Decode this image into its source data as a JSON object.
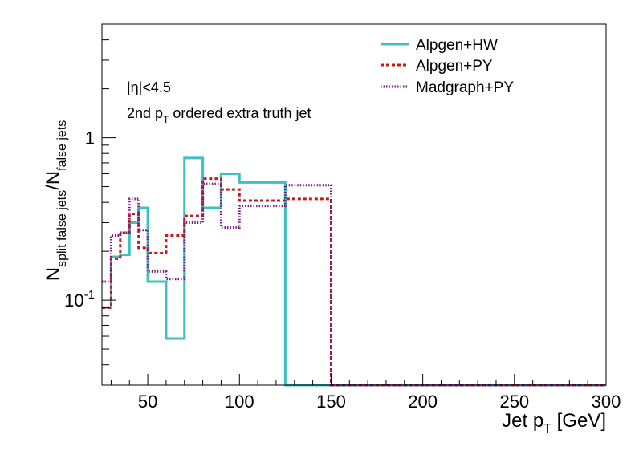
{
  "chart_data": {
    "type": "line",
    "title": "",
    "xlabel": "Jet p",
    "xlabel_sub": "T",
    "xlabel_unit": " [GeV]",
    "ylabel_parts": {
      "n1": "N",
      "sub1": "split false jets",
      "slash": "/N",
      "sub2": "false jets"
    },
    "xlim": [
      25,
      300
    ],
    "ylim": [
      0.03,
      5.0
    ],
    "yscale": "log",
    "grid": false,
    "legend_position": "top-right",
    "x_ticks": [
      {
        "value": 50,
        "label": "50"
      },
      {
        "value": 100,
        "label": "100"
      },
      {
        "value": 150,
        "label": "150"
      },
      {
        "value": 200,
        "label": "200"
      },
      {
        "value": 250,
        "label": "250"
      },
      {
        "value": 300,
        "label": "300"
      }
    ],
    "y_ticks": [
      {
        "value": 0.1,
        "base": "10",
        "exp": "-1"
      },
      {
        "value": 1,
        "base": "1",
        "exp": ""
      }
    ],
    "annotations": {
      "eta_text": "|η|<4.5",
      "line2_a": "2nd p",
      "line2_sub": "T",
      "line2_b": " ordered extra truth jet"
    },
    "bin_edges": [
      25,
      30,
      35,
      40,
      45,
      50,
      60,
      70,
      80,
      90,
      100,
      125,
      150,
      300
    ],
    "series": [
      {
        "name": "Alpgen+HW",
        "color": "#3cc0c0",
        "style": "solid",
        "values": [
          0.09,
          0.185,
          0.19,
          0.3,
          0.37,
          0.13,
          0.058,
          0.75,
          0.37,
          0.6,
          0.53,
          0.03,
          0.03
        ]
      },
      {
        "name": "Alpgen+PY",
        "color": "#c41a1a",
        "style": "dashed",
        "values": [
          0.09,
          0.18,
          0.26,
          0.34,
          0.21,
          0.195,
          0.25,
          0.33,
          0.56,
          0.48,
          0.41,
          0.42,
          0.03
        ]
      },
      {
        "name": "Madgraph+PY",
        "color": "#7a1a8a",
        "style": "dotted",
        "values": [
          0.13,
          0.25,
          0.26,
          0.42,
          0.27,
          0.15,
          0.135,
          0.3,
          0.52,
          0.28,
          0.38,
          0.51,
          0.03
        ]
      }
    ]
  }
}
